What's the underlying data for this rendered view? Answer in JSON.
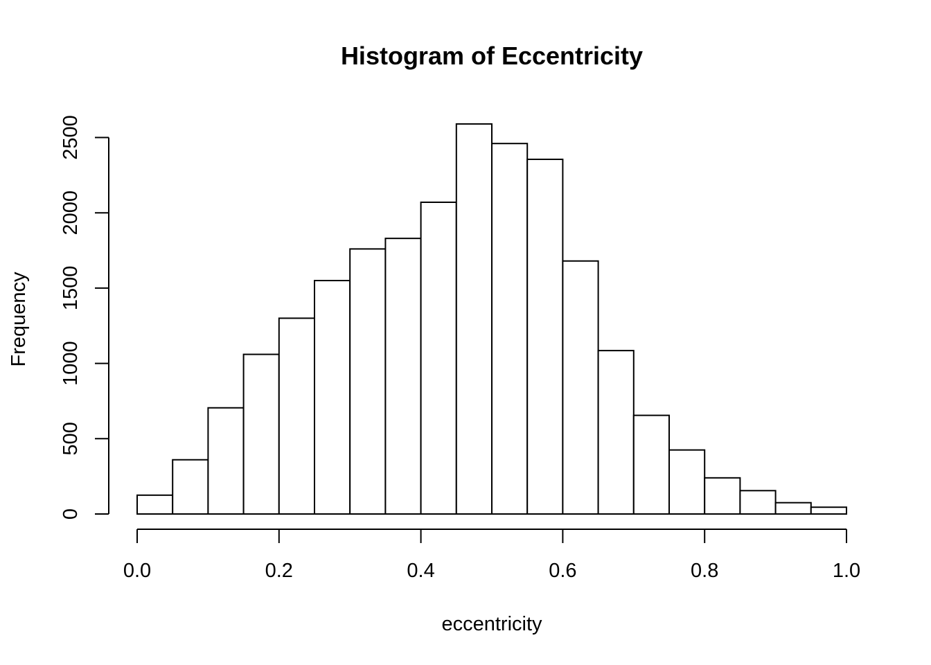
{
  "chart_data": {
    "type": "bar",
    "title": "Histogram of Eccentricity",
    "xlabel": "eccentricity",
    "ylabel": "Frequency",
    "xlim": [
      0,
      1
    ],
    "ylim": [
      0,
      2600
    ],
    "bin_width": 0.05,
    "bins": [
      {
        "x0": 0.0,
        "x1": 0.05,
        "count": 125
      },
      {
        "x0": 0.05,
        "x1": 0.1,
        "count": 360
      },
      {
        "x0": 0.1,
        "x1": 0.15,
        "count": 705
      },
      {
        "x0": 0.15,
        "x1": 0.2,
        "count": 1060
      },
      {
        "x0": 0.2,
        "x1": 0.25,
        "count": 1300
      },
      {
        "x0": 0.25,
        "x1": 0.3,
        "count": 1550
      },
      {
        "x0": 0.3,
        "x1": 0.35,
        "count": 1760
      },
      {
        "x0": 0.35,
        "x1": 0.4,
        "count": 1830
      },
      {
        "x0": 0.4,
        "x1": 0.45,
        "count": 2070
      },
      {
        "x0": 0.45,
        "x1": 0.5,
        "count": 2590
      },
      {
        "x0": 0.5,
        "x1": 0.55,
        "count": 2460
      },
      {
        "x0": 0.55,
        "x1": 0.6,
        "count": 2355
      },
      {
        "x0": 0.6,
        "x1": 0.65,
        "count": 1680
      },
      {
        "x0": 0.65,
        "x1": 0.7,
        "count": 1085
      },
      {
        "x0": 0.7,
        "x1": 0.75,
        "count": 655
      },
      {
        "x0": 0.75,
        "x1": 0.8,
        "count": 425
      },
      {
        "x0": 0.8,
        "x1": 0.85,
        "count": 240
      },
      {
        "x0": 0.85,
        "x1": 0.9,
        "count": 155
      },
      {
        "x0": 0.9,
        "x1": 0.95,
        "count": 75
      },
      {
        "x0": 0.95,
        "x1": 1.0,
        "count": 45
      }
    ],
    "x_ticks": [
      {
        "value": 0.0,
        "label": "0.0"
      },
      {
        "value": 0.2,
        "label": "0.2"
      },
      {
        "value": 0.4,
        "label": "0.4"
      },
      {
        "value": 0.6,
        "label": "0.6"
      },
      {
        "value": 0.8,
        "label": "0.8"
      },
      {
        "value": 1.0,
        "label": "1.0"
      }
    ],
    "y_ticks": [
      {
        "value": 0,
        "label": "0"
      },
      {
        "value": 500,
        "label": "500"
      },
      {
        "value": 1000,
        "label": "1000"
      },
      {
        "value": 1500,
        "label": "1500"
      },
      {
        "value": 2000,
        "label": "2000"
      },
      {
        "value": 2500,
        "label": "2500"
      }
    ],
    "grid": false,
    "legend": "none"
  }
}
